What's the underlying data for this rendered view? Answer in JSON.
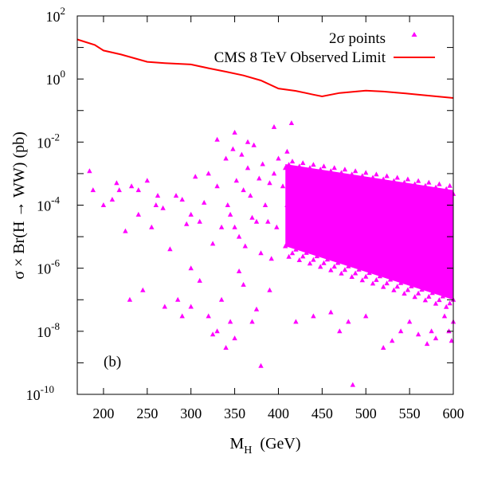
{
  "chart_data": {
    "type": "scatter",
    "panel_label": "(b)",
    "xlabel": {
      "main": "M",
      "sub": "H",
      "unit": "(GeV)"
    },
    "ylabel": "σ × Br(H → WW)  (pb)",
    "xlim": [
      170,
      600
    ],
    "ylim_log10": [
      -10,
      2
    ],
    "y_scale": "log",
    "grid": false,
    "legend_position": "top-right",
    "x_ticks": [
      200,
      250,
      300,
      350,
      400,
      450,
      500,
      550,
      600
    ],
    "y_ticks": [
      {
        "base": "10",
        "exp": "2",
        "value": 100
      },
      {
        "base": "10",
        "exp": "0",
        "value": 1
      },
      {
        "base": "10",
        "exp": "-2",
        "value": 0.01
      },
      {
        "base": "10",
        "exp": "-4",
        "value": 0.0001
      },
      {
        "base": "10",
        "exp": "-6",
        "value": 1e-06
      },
      {
        "base": "10",
        "exp": "-8",
        "value": 1e-08
      },
      {
        "base": "10",
        "exp": "-10",
        "value": 1e-10
      }
    ],
    "series": [
      {
        "name": "2σ points",
        "kind": "scatter",
        "marker": "triangle",
        "color": "#ff00ff",
        "x": [
          184,
          188,
          210,
          218,
          225,
          232,
          240,
          250,
          255,
          262,
          268,
          276,
          283,
          290,
          295,
          300,
          305,
          310,
          315,
          320,
          325,
          330,
          335,
          340,
          342,
          345,
          348,
          350,
          352,
          355,
          358,
          360,
          362,
          365,
          368,
          370,
          372,
          375,
          378,
          380,
          382,
          385,
          388,
          390,
          392,
          395,
          398,
          400,
          405,
          410,
          285,
          300,
          310,
          320,
          335,
          345,
          360,
          375,
          390,
          200,
          215,
          240,
          260,
          330,
          350,
          370,
          300,
          340,
          355,
          420,
          440,
          460,
          470,
          480,
          500,
          520,
          530,
          540,
          550,
          560,
          570,
          575,
          580,
          590,
          595,
          598,
          600,
          485,
          380,
          325,
          290,
          270,
          245,
          230,
          330,
          350,
          365,
          395,
          410,
          415
        ],
        "y": [
          0.0012,
          0.0003,
          0.00015,
          0.0003,
          1.5e-05,
          0.0004,
          0.0003,
          0.0006,
          2e-05,
          0.0002,
          8e-05,
          4e-06,
          0.0002,
          0.00015,
          2.5e-05,
          5e-05,
          0.0008,
          3e-05,
          0.00012,
          0.001,
          6e-06,
          0.0004,
          2e-05,
          0.003,
          0.0001,
          5e-05,
          0.006,
          2e-05,
          0.0006,
          1e-05,
          0.004,
          0.0003,
          5e-06,
          0.0015,
          0.0002,
          4e-05,
          0.008,
          3e-05,
          0.0007,
          3e-06,
          0.002,
          0.0001,
          3e-05,
          0.0005,
          2e-06,
          0.001,
          2e-05,
          0.003,
          0.0004,
          0.0001,
          1e-07,
          6e-08,
          4e-07,
          3e-08,
          1e-07,
          2e-08,
          3e-07,
          5e-08,
          2e-07,
          0.0001,
          0.0005,
          5e-05,
          0.0001,
          1e-08,
          6e-09,
          2e-08,
          1e-06,
          3e-09,
          8e-07,
          2e-08,
          3e-08,
          4e-08,
          1e-08,
          2e-08,
          3e-08,
          3e-09,
          5e-09,
          1e-08,
          2e-08,
          8e-09,
          4e-09,
          1e-08,
          6e-09,
          3e-08,
          1e-08,
          5e-09,
          2e-08,
          2e-10,
          8e-10,
          8e-09,
          3e-08,
          6e-08,
          2e-07,
          1e-07,
          0.012,
          0.02,
          0.01,
          0.03,
          0.005,
          0.04
        ]
      },
      {
        "name": "CMS 8 TeV Observed Limit",
        "kind": "line",
        "color": "#ff0000",
        "x": [
          170,
          190,
          200,
          220,
          250,
          270,
          300,
          320,
          340,
          360,
          380,
          400,
          420,
          440,
          450,
          470,
          500,
          520,
          550,
          570,
          600
        ],
        "y": [
          18,
          12,
          8,
          6,
          3.5,
          3.2,
          2.9,
          2.2,
          1.7,
          1.3,
          0.9,
          0.5,
          0.42,
          0.32,
          0.28,
          0.36,
          0.43,
          0.4,
          0.34,
          0.3,
          0.25
        ]
      }
    ],
    "dense_regions": [
      {
        "series": "2σ points",
        "description_x": [
          408,
          600
        ],
        "top_at_x": [
          [
            408,
            0.002
          ],
          [
            600,
            0.0003
          ]
        ],
        "bottom_at_x": [
          [
            408,
            5e-06
          ],
          [
            600,
            1e-07
          ]
        ]
      }
    ]
  }
}
